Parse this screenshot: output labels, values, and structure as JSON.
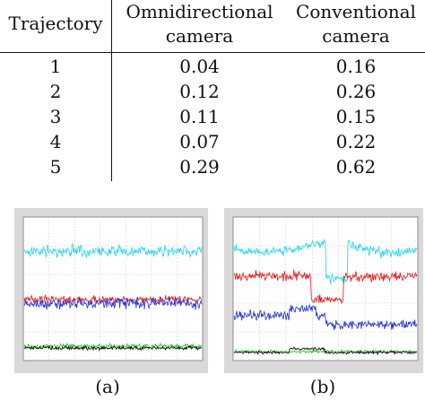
{
  "table": {
    "headers": {
      "col1": "Trajectory",
      "col2_line1": "Omnidirectional",
      "col2_line2": "camera",
      "col3_line1": "Conventional",
      "col3_line2": "camera"
    },
    "rows": [
      {
        "trajectory": "1",
        "omni": "0.04",
        "conv": "0.16"
      },
      {
        "trajectory": "2",
        "omni": "0.12",
        "conv": "0.26"
      },
      {
        "trajectory": "3",
        "omni": "0.11",
        "conv": "0.15"
      },
      {
        "trajectory": "4",
        "omni": "0.07",
        "conv": "0.22"
      },
      {
        "trajectory": "5",
        "omni": "0.29",
        "conv": "0.62"
      }
    ]
  },
  "figures": {
    "left_caption": "(a)",
    "right_caption": "(b)"
  },
  "colors": {
    "cyan": "#22d3e8",
    "red": "#e01818",
    "blue": "#1c2ee0",
    "green": "#22c41e",
    "black": "#000000"
  }
}
